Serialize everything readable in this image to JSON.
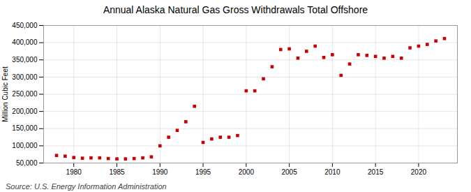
{
  "chart_data": {
    "type": "scatter",
    "title": "Annual Alaska Natural Gas Gross Withdrawals Total Offshore",
    "ylabel": "Million Cubic Feet",
    "source": "Source: U.S. Energy Information Administration",
    "x": [
      1978,
      1979,
      1980,
      1981,
      1982,
      1983,
      1984,
      1985,
      1986,
      1987,
      1988,
      1989,
      1990,
      1991,
      1992,
      1993,
      1994,
      1995,
      1996,
      1997,
      1998,
      1999,
      2000,
      2001,
      2002,
      2003,
      2004,
      2005,
      2006,
      2007,
      2008,
      2009,
      2010,
      2011,
      2012,
      2013,
      2014,
      2015,
      2016,
      2017,
      2018,
      2019,
      2020,
      2021,
      2022,
      2023
    ],
    "values": [
      72000,
      70000,
      66000,
      64000,
      65000,
      65000,
      63000,
      62000,
      62000,
      63000,
      65000,
      68000,
      100000,
      125000,
      145000,
      170000,
      215000,
      110000,
      120000,
      125000,
      125000,
      130000,
      260000,
      260000,
      295000,
      330000,
      380000,
      382000,
      355000,
      375000,
      390000,
      357000,
      365000,
      305000,
      338000,
      365000,
      363000,
      360000,
      355000,
      360000,
      355000,
      385000,
      390000,
      395000,
      405000,
      412000
    ],
    "color": "#cc0000",
    "marker": "square",
    "xlim": [
      1976.5,
      2024.5
    ],
    "xticks": [
      1980,
      1985,
      1990,
      1995,
      2000,
      2005,
      2010,
      2015,
      2020
    ],
    "ylim": [
      50000,
      450000
    ],
    "yticks": [
      {
        "value": 50000,
        "label": "50,000"
      },
      {
        "value": 100000,
        "label": "100,000"
      },
      {
        "value": 150000,
        "label": "150,000"
      },
      {
        "value": 200000,
        "label": "200,000"
      },
      {
        "value": 250000,
        "label": "250,000"
      },
      {
        "value": 300000,
        "label": "300,000"
      },
      {
        "value": 350000,
        "label": "350,000"
      },
      {
        "value": 400000,
        "label": "400,000"
      },
      {
        "value": 450000,
        "label": "450,000"
      }
    ],
    "grid": true
  }
}
